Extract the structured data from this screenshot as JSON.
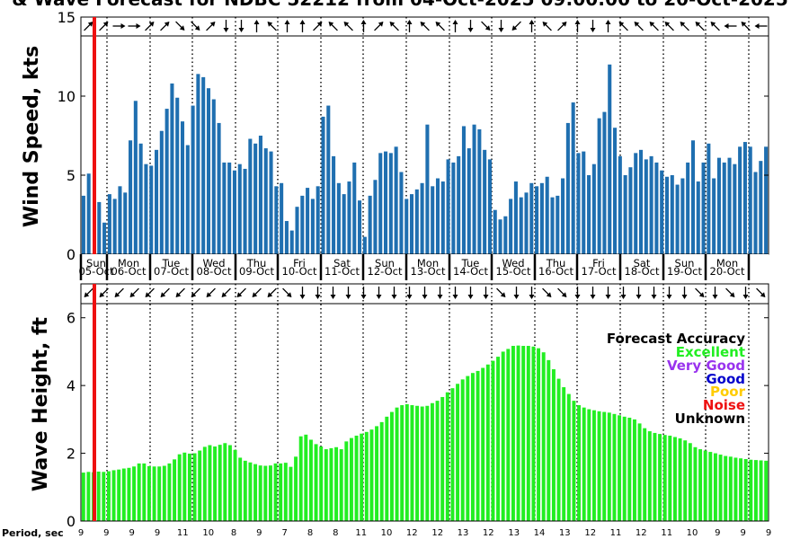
{
  "title": "& Wave Forecast for NDBC 52212 from 04-Oct-2025 09:00:00 to 20-Oct-2025",
  "colors": {
    "wind_bar": "#1f6fb0",
    "wave_bar": "#22ee22",
    "now_line": "#ee1111",
    "excellent": "#22ee22",
    "very_good": "#9933ee",
    "good": "#0000cc",
    "poor": "#ffcc00",
    "noise": "#ee1111",
    "unknown": "#000000"
  },
  "chart_data": [
    {
      "type": "bar",
      "ylabel": "Wind Speed, kts",
      "ylim": [
        0,
        15
      ],
      "yticks": [
        0,
        5,
        10,
        15
      ],
      "grid": "vertical dotted lines at day boundaries",
      "days": [
        {
          "name": "Sun",
          "date": "05-Oct"
        },
        {
          "name": "Mon",
          "date": "06-Oct"
        },
        {
          "name": "Tue",
          "date": "07-Oct"
        },
        {
          "name": "Wed",
          "date": "08-Oct"
        },
        {
          "name": "Thu",
          "date": "09-Oct"
        },
        {
          "name": "Fri",
          "date": "10-Oct"
        },
        {
          "name": "Sat",
          "date": "11-Oct"
        },
        {
          "name": "Sun",
          "date": "12-Oct"
        },
        {
          "name": "Mon",
          "date": "13-Oct"
        },
        {
          "name": "Tue",
          "date": "14-Oct"
        },
        {
          "name": "Wed",
          "date": "15-Oct"
        },
        {
          "name": "Thu",
          "date": "16-Oct"
        },
        {
          "name": "Fri",
          "date": "17-Oct"
        },
        {
          "name": "Sat",
          "date": "18-Oct"
        },
        {
          "name": "Sun",
          "date": "19-Oct"
        },
        {
          "name": "Mon",
          "date": "20-Oct"
        }
      ],
      "values": [
        3.7,
        5.1,
        0,
        3.3,
        2.0,
        3.8,
        3.5,
        4.3,
        3.9,
        7.2,
        9.7,
        7.0,
        5.7,
        5.6,
        6.6,
        7.8,
        9.2,
        10.8,
        9.9,
        8.4,
        6.9,
        9.4,
        11.4,
        11.2,
        10.5,
        9.8,
        8.3,
        5.8,
        5.8,
        5.3,
        5.7,
        5.4,
        7.3,
        7.0,
        7.5,
        6.7,
        6.5,
        4.3,
        4.5,
        2.1,
        1.5,
        3.0,
        3.7,
        4.2,
        3.5,
        4.3,
        8.7,
        9.4,
        6.2,
        4.5,
        3.8,
        4.6,
        5.8,
        3.4,
        1.1,
        3.7,
        4.7,
        6.4,
        6.5,
        6.4,
        6.8,
        5.2,
        3.5,
        3.8,
        4.1,
        4.5,
        8.2,
        4.3,
        4.8,
        4.6,
        6.0,
        5.8,
        6.2,
        8.1,
        6.7,
        8.2,
        7.9,
        6.6,
        6.0,
        2.8,
        2.2,
        2.4,
        3.5,
        4.6,
        3.6,
        3.9,
        4.5,
        4.3,
        4.5,
        4.9,
        3.6,
        3.7,
        4.8,
        8.3,
        9.6,
        6.4,
        6.5,
        5.0,
        5.7,
        8.6,
        9.0,
        12.0,
        8.0,
        6.2,
        5.0,
        5.5,
        6.4,
        6.6,
        6.0,
        6.2,
        5.8,
        5.3,
        4.9,
        5.0,
        4.4,
        4.8,
        5.8,
        7.2,
        4.6,
        5.8,
        7.0,
        4.8,
        6.1,
        5.8,
        6.1,
        5.7,
        6.8,
        7.1,
        6.8,
        5.2,
        5.9,
        6.8
      ],
      "direction_arrows": [
        "ne",
        "ne",
        "e",
        "e",
        "ne",
        "ne",
        "se",
        "se",
        "ne",
        "s",
        "s",
        "n",
        "nw",
        "n",
        "n",
        "ne",
        "nw",
        "nw",
        "n",
        "ne",
        "nw",
        "n",
        "nw",
        "nw",
        "n",
        "s",
        "se",
        "s",
        "sw",
        "n",
        "nw",
        "ne",
        "n",
        "s",
        "n",
        "nw",
        "nw",
        "nw",
        "nw",
        "nw",
        "nw",
        "nw",
        "w",
        "nw",
        "w"
      ]
    },
    {
      "type": "bar",
      "ylabel": "Wave Height, ft",
      "ylim": [
        0,
        7
      ],
      "yticks": [
        0,
        2,
        4,
        6
      ],
      "xlabel": "Period, sec",
      "period_labels": [
        "9",
        "9",
        "9",
        "9",
        "11",
        "10",
        "8",
        "9",
        "7",
        "8",
        "8",
        "11",
        "10",
        "12",
        "12",
        "13",
        "12",
        "13",
        "14",
        "13",
        "12",
        "11",
        "12",
        "11",
        "10",
        "9",
        "9",
        "9"
      ],
      "values": [
        1.43,
        1.45,
        1.44,
        1.46,
        1.45,
        1.47,
        1.5,
        1.52,
        1.55,
        1.57,
        1.61,
        1.7,
        1.7,
        1.62,
        1.61,
        1.61,
        1.63,
        1.7,
        1.82,
        1.97,
        2.02,
        1.99,
        2.0,
        2.08,
        2.19,
        2.24,
        2.2,
        2.25,
        2.3,
        2.24,
        2.1,
        1.87,
        1.78,
        1.73,
        1.68,
        1.64,
        1.63,
        1.64,
        1.7,
        1.7,
        1.72,
        1.6,
        1.9,
        2.5,
        2.55,
        2.4,
        2.27,
        2.2,
        2.12,
        2.15,
        2.18,
        2.12,
        2.35,
        2.45,
        2.52,
        2.58,
        2.63,
        2.7,
        2.8,
        2.92,
        3.08,
        3.22,
        3.35,
        3.42,
        3.45,
        3.42,
        3.4,
        3.38,
        3.4,
        3.48,
        3.55,
        3.66,
        3.8,
        3.92,
        4.05,
        4.18,
        4.28,
        4.37,
        4.43,
        4.52,
        4.62,
        4.73,
        4.85,
        5.0,
        5.08,
        5.17,
        5.18,
        5.17,
        5.17,
        5.15,
        5.1,
        4.98,
        4.75,
        4.48,
        4.2,
        3.95,
        3.75,
        3.55,
        3.42,
        3.35,
        3.3,
        3.27,
        3.24,
        3.22,
        3.2,
        3.16,
        3.12,
        3.08,
        3.05,
        3.0,
        2.88,
        2.74,
        2.65,
        2.6,
        2.57,
        2.54,
        2.52,
        2.48,
        2.44,
        2.38,
        2.3,
        2.18,
        2.12,
        2.08,
        2.04,
        2.0,
        1.96,
        1.92,
        1.9,
        1.87,
        1.85,
        1.83,
        1.81,
        1.8,
        1.79,
        1.78
      ],
      "direction_arrows": [
        "sw",
        "sw",
        "sw",
        "sw",
        "sw",
        "sw",
        "sw",
        "sw",
        "sw",
        "sw",
        "sw",
        "sw",
        "sw",
        "se",
        "s",
        "s",
        "s",
        "s",
        "s",
        "s",
        "s",
        "s",
        "s",
        "s",
        "s",
        "s",
        "s",
        "se",
        "s",
        "s",
        "se",
        "se",
        "s",
        "s",
        "s",
        "s",
        "s",
        "s",
        "s",
        "s",
        "se",
        "s",
        "se",
        "s",
        "se"
      ]
    }
  ],
  "legend": {
    "title": "Forecast Accuracy",
    "items": [
      "Excellent",
      "Very Good",
      "Good",
      "Poor",
      "Noise",
      "Unknown"
    ]
  }
}
